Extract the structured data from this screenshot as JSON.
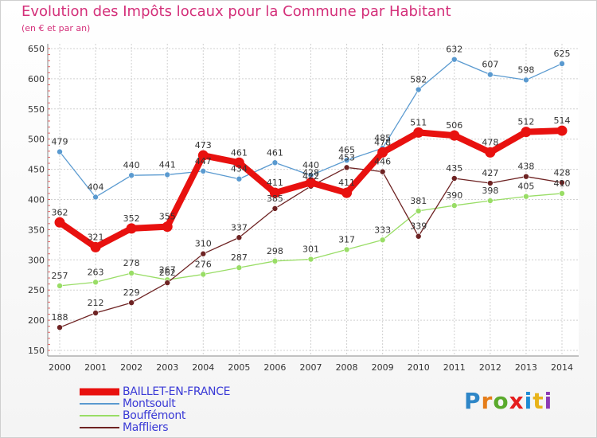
{
  "header": {
    "title": "Evolution des Impôts locaux pour la Commune par Habitant",
    "subtitle": "(en € et par an)"
  },
  "brand": {
    "text": "Proxiti",
    "letter_colors": [
      "#2e86c7",
      "#e57d1a",
      "#5aaa2c",
      "#e51e1e",
      "#1e8cd4",
      "#e8b31a",
      "#8c3ab5"
    ]
  },
  "chart_data": {
    "type": "line",
    "x": [
      2000,
      2001,
      2002,
      2003,
      2004,
      2005,
      2006,
      2007,
      2008,
      2009,
      2010,
      2011,
      2012,
      2013,
      2014
    ],
    "ylim": [
      150,
      650
    ],
    "yticks": [
      150,
      200,
      250,
      300,
      350,
      400,
      450,
      500,
      550,
      600,
      650
    ],
    "grid": true,
    "legend_position": "bottom-left",
    "series": [
      {
        "name": "BAILLET-EN-FRANCE",
        "color": "#e8110f",
        "style": "thick",
        "values": [
          362,
          321,
          352,
          355,
          473,
          461,
          411,
          428,
          411,
          478,
          511,
          506,
          478,
          512,
          514
        ]
      },
      {
        "name": "Montsoult",
        "color": "#5a9ad0",
        "style": "thin",
        "values": [
          479,
          404,
          440,
          441,
          447,
          434,
          461,
          440,
          465,
          485,
          582,
          632,
          607,
          598,
          625
        ]
      },
      {
        "name": "Bouffémont",
        "color": "#99dd66",
        "style": "thin",
        "values": [
          257,
          263,
          278,
          267,
          276,
          287,
          298,
          301,
          317,
          333,
          381,
          390,
          398,
          405,
          410
        ]
      },
      {
        "name": "Maffliers",
        "color": "#6e2323",
        "style": "thin",
        "values": [
          188,
          212,
          229,
          262,
          310,
          337,
          385,
          422,
          453,
          446,
          339,
          435,
          427,
          438,
          428
        ]
      }
    ]
  }
}
